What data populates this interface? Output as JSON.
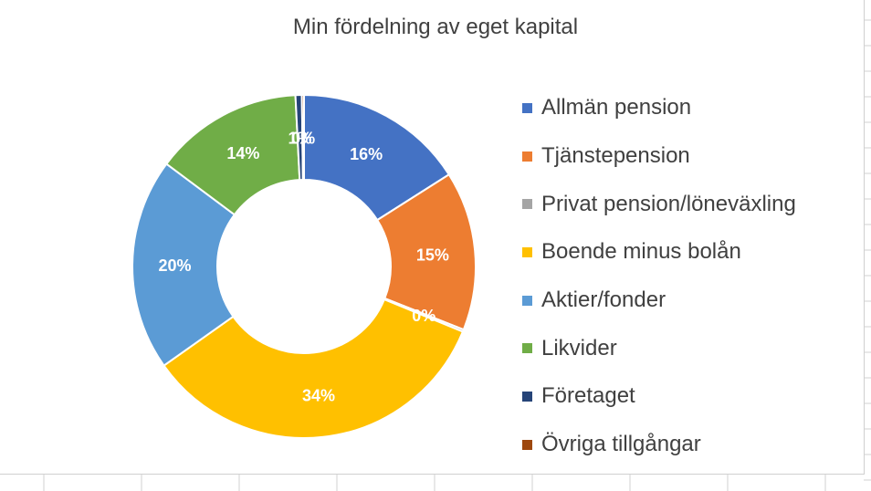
{
  "chart_data": {
    "type": "pie",
    "title": "Min fördelning av eget kapital",
    "donut": true,
    "legend_position": "right",
    "labels": [
      "Allmän pension",
      "Tjänstepension",
      "Privat pension/löneväxling",
      "Boende minus bolån",
      "Aktier/fonder",
      "Likvider",
      "Företaget",
      "Övriga tillgångar"
    ],
    "values": [
      16,
      15,
      0.2,
      34,
      20,
      14,
      0.6,
      0.2
    ],
    "data_labels": [
      "16%",
      "15%",
      "0%",
      "34%",
      "20%",
      "14%",
      "1%",
      "0%"
    ],
    "colors": [
      "#4472C4",
      "#ED7D31",
      "#A5A5A5",
      "#FFC000",
      "#5B9BD5",
      "#70AD47",
      "#264478",
      "#9E480E"
    ],
    "label_colors": [
      "#ffffff",
      "#ffffff",
      "#ffffff",
      "#ffffff",
      "#ffffff",
      "#ffffff",
      "#ffffff",
      "#ffffff"
    ]
  }
}
